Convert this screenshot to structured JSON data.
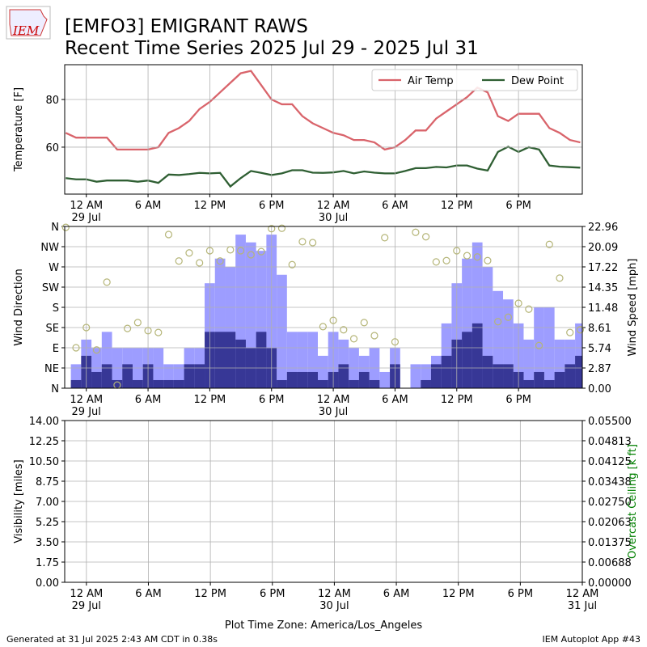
{
  "header": {
    "logo": "IEM",
    "title": [
      "[EMFO3] EMIGRANT RAWS",
      "Recent Time Series 2025 Jul 29 - 2025 Jul 31"
    ]
  },
  "footer": {
    "left": "Generated at 31 Jul 2025 2:43 AM CDT in 0.38s",
    "right": "IEM Autoplot App #43"
  },
  "chart_data": [
    {
      "type": "line",
      "ylabel": "Temperature [F]",
      "legend": "upper right",
      "grid": true,
      "xlim": [
        -2.1,
        48.2
      ],
      "ylim": [
        40.3,
        94.6
      ],
      "yticks": [
        60,
        80
      ],
      "xticks": [
        {
          "value": 0,
          "label": "12 AM\n29 Jul"
        },
        {
          "value": 6,
          "label": "6 AM"
        },
        {
          "value": 12,
          "label": "12 PM"
        },
        {
          "value": 18,
          "label": "6 PM"
        },
        {
          "value": 24,
          "label": "12 AM\n30 Jul"
        },
        {
          "value": 30,
          "label": "6 AM"
        },
        {
          "value": 36,
          "label": "12 PM"
        },
        {
          "value": 42,
          "label": "6 PM"
        }
      ],
      "x": [
        -2,
        -1,
        0,
        1,
        2,
        3,
        4,
        5,
        6,
        7,
        8,
        9,
        10,
        11,
        12,
        13,
        14,
        15,
        16,
        17,
        18,
        19,
        20,
        21,
        22,
        23,
        24,
        25,
        26,
        27,
        28,
        29,
        30,
        31,
        32,
        33,
        34,
        35,
        36,
        37,
        38,
        39,
        40,
        41,
        42,
        43,
        44,
        45,
        46,
        47,
        48
      ],
      "series": [
        {
          "name": "Air Temp",
          "color": "#d9646b",
          "values": [
            66,
            64,
            64,
            64,
            64,
            59,
            59,
            59,
            59,
            60,
            66,
            68,
            71,
            76,
            79,
            83,
            87,
            91,
            92,
            86,
            80,
            78,
            78,
            73,
            70,
            68,
            66,
            65,
            63,
            63,
            62,
            59,
            60,
            63,
            67,
            67,
            72,
            75,
            78,
            81,
            85,
            83,
            73,
            71,
            74,
            74,
            74,
            68,
            66,
            63,
            62
          ]
        },
        {
          "name": "Dew Point",
          "color": "#2f5f33",
          "values": [
            47,
            46.5,
            46.5,
            45.5,
            46,
            46,
            46,
            45.5,
            46,
            45,
            48.5,
            48.3,
            48.7,
            49.2,
            49,
            49.2,
            43.5,
            47,
            50,
            49.2,
            48.3,
            49,
            50.3,
            50.3,
            49.3,
            49.2,
            49.4,
            50,
            49,
            49.8,
            49.3,
            49,
            49,
            50,
            51.2,
            51.2,
            51.7,
            51.5,
            52.3,
            52.3,
            51,
            50.2,
            58,
            60.2,
            58,
            60,
            59,
            52.3,
            51.8,
            51.6,
            51.4
          ]
        }
      ]
    },
    {
      "type": "combo",
      "ylabel": "Wind Direction",
      "y2label": "Wind Speed [mph]",
      "grid": true,
      "xlim": [
        -2.1,
        48.2
      ],
      "ylim": [
        0,
        360
      ],
      "y2lim": [
        0,
        22.96
      ],
      "xticks": [
        {
          "value": 0,
          "label": "12 AM\n29 Jul"
        },
        {
          "value": 6,
          "label": "6 AM"
        },
        {
          "value": 12,
          "label": "12 PM"
        },
        {
          "value": 18,
          "label": "6 PM"
        },
        {
          "value": 24,
          "label": "12 AM\n30 Jul"
        },
        {
          "value": 30,
          "label": "6 AM"
        },
        {
          "value": 36,
          "label": "12 PM"
        },
        {
          "value": 42,
          "label": "6 PM"
        }
      ],
      "yticks": [
        {
          "value": 0,
          "label": "N"
        },
        {
          "value": 45,
          "label": "NE"
        },
        {
          "value": 90,
          "label": "E"
        },
        {
          "value": 135,
          "label": "SE"
        },
        {
          "value": 180,
          "label": "S"
        },
        {
          "value": 225,
          "label": "SW"
        },
        {
          "value": 270,
          "label": "W"
        },
        {
          "value": 315,
          "label": "NW"
        },
        {
          "value": 360,
          "label": "N"
        }
      ],
      "y2ticks": [
        {
          "value": 0,
          "label": "0.00"
        },
        2.87,
        5.74,
        8.61,
        11.48,
        14.35,
        17.22,
        20.09,
        22.96
      ],
      "series": [
        {
          "type": "bar",
          "axis": "y2",
          "color": "#9d9dff",
          "x": [
            -1,
            0,
            1,
            2,
            3,
            4,
            5,
            6,
            7,
            8,
            9,
            10,
            11,
            12,
            13,
            14,
            15,
            16,
            17,
            18,
            19,
            20,
            21,
            22,
            23,
            24,
            25,
            26,
            27,
            28,
            29,
            30,
            31,
            32,
            33,
            34,
            35,
            36,
            37,
            38,
            39,
            40,
            41,
            42,
            43,
            44,
            45,
            46,
            47,
            48
          ],
          "values": [
            3.4,
            6.9,
            5.7,
            8,
            5.7,
            5.7,
            5.7,
            5.7,
            5.7,
            3.4,
            3.4,
            5.7,
            5.7,
            14.9,
            18.4,
            17.2,
            21.8,
            20.7,
            19.5,
            21.8,
            16.1,
            8,
            8,
            8,
            4.6,
            8,
            6.9,
            5.7,
            4.6,
            5.7,
            2.3,
            5.7,
            0,
            3.4,
            3.4,
            4.6,
            9.2,
            14.9,
            18.4,
            20.7,
            17.2,
            13.8,
            12.6,
            9.2,
            6.9,
            11.5,
            11.5,
            6.9,
            6.9,
            9.2
          ]
        },
        {
          "type": "bar",
          "axis": "y2",
          "color": "#373796",
          "x": [
            -1,
            0,
            1,
            2,
            3,
            4,
            5,
            6,
            7,
            8,
            9,
            10,
            11,
            12,
            13,
            14,
            15,
            16,
            17,
            18,
            19,
            20,
            21,
            22,
            23,
            24,
            25,
            26,
            27,
            28,
            29,
            30,
            31,
            32,
            33,
            34,
            35,
            36,
            37,
            38,
            39,
            40,
            41,
            42,
            43,
            44,
            45,
            46,
            47,
            48
          ],
          "values": [
            1.15,
            4.6,
            2.3,
            3.4,
            1.15,
            3.4,
            1.15,
            3.4,
            1.15,
            1.15,
            1.15,
            3.4,
            3.4,
            8,
            8,
            8,
            6.9,
            5.7,
            8,
            5.7,
            1.15,
            2.3,
            2.3,
            2.3,
            1.15,
            2.3,
            3.4,
            1.15,
            2.3,
            1.15,
            0,
            3.4,
            0,
            0,
            1.15,
            3.4,
            4.6,
            6.9,
            8,
            9.2,
            4.6,
            3.4,
            3.4,
            2.3,
            1.15,
            2.3,
            1.15,
            2.3,
            3.4,
            4.6
          ]
        },
        {
          "type": "scatter",
          "color": "#b5b578",
          "x": [
            -2,
            -1,
            0,
            1,
            2,
            3,
            4,
            5,
            6,
            7,
            8,
            9,
            10,
            11,
            12,
            13,
            14,
            15,
            16,
            17,
            18,
            19,
            20,
            21,
            22,
            23,
            24,
            25,
            26,
            27,
            28,
            29,
            30,
            32,
            33,
            34,
            35,
            36,
            37,
            38,
            39,
            40,
            41,
            42,
            43,
            44,
            45,
            46,
            47,
            48
          ],
          "values": [
            358,
            90,
            135,
            85,
            236,
            7,
            133,
            146,
            128,
            124,
            342,
            283,
            301,
            279,
            306,
            283,
            308,
            306,
            297,
            304,
            355,
            356,
            275,
            326,
            324,
            137,
            151,
            130,
            110,
            146,
            117,
            335,
            103,
            347,
            337,
            281,
            284,
            306,
            295,
            292,
            284,
            148,
            158,
            189,
            176,
            95,
            320,
            245,
            124,
            130
          ]
        }
      ]
    },
    {
      "type": "line",
      "ylabel": "Visibility [miles]",
      "y2label": "Overcast Ceiling [k ft]",
      "y2color": "#008000",
      "grid": true,
      "xlabel": "Plot Time Zone: America/Los_Angeles",
      "xlim": [
        -2.1,
        48
      ],
      "ylim": [
        0,
        14
      ],
      "y2lim": [
        0,
        0.055
      ],
      "xticks": [
        {
          "value": 0,
          "label": "12 AM\n29 Jul"
        },
        {
          "value": 6,
          "label": "6 AM"
        },
        {
          "value": 12,
          "label": "12 PM"
        },
        {
          "value": 18,
          "label": "6 PM"
        },
        {
          "value": 24,
          "label": "12 AM\n30 Jul"
        },
        {
          "value": 30,
          "label": "6 AM"
        },
        {
          "value": 36,
          "label": "12 PM"
        },
        {
          "value": 42,
          "label": "6 PM"
        },
        {
          "value": 48,
          "label": "12 AM\n31 Jul"
        }
      ],
      "yticks": [
        {
          "value": 0,
          "label": "0.00"
        },
        1.75,
        {
          "value": 3.5,
          "label": "3.50"
        },
        5.25,
        {
          "value": 7,
          "label": "7.00"
        },
        8.75,
        {
          "value": 10.5,
          "label": "10.50"
        },
        12.25,
        {
          "value": 14,
          "label": "14.00"
        }
      ],
      "y2ticks": [
        {
          "value": 0,
          "label": "0.00000"
        },
        0.00688,
        0.01375,
        0.02063,
        {
          "value": 0.0275,
          "label": "0.02750"
        },
        0.03438,
        0.04125,
        0.04813,
        {
          "value": 0.055,
          "label": "0.05500"
        }
      ],
      "series": []
    }
  ]
}
